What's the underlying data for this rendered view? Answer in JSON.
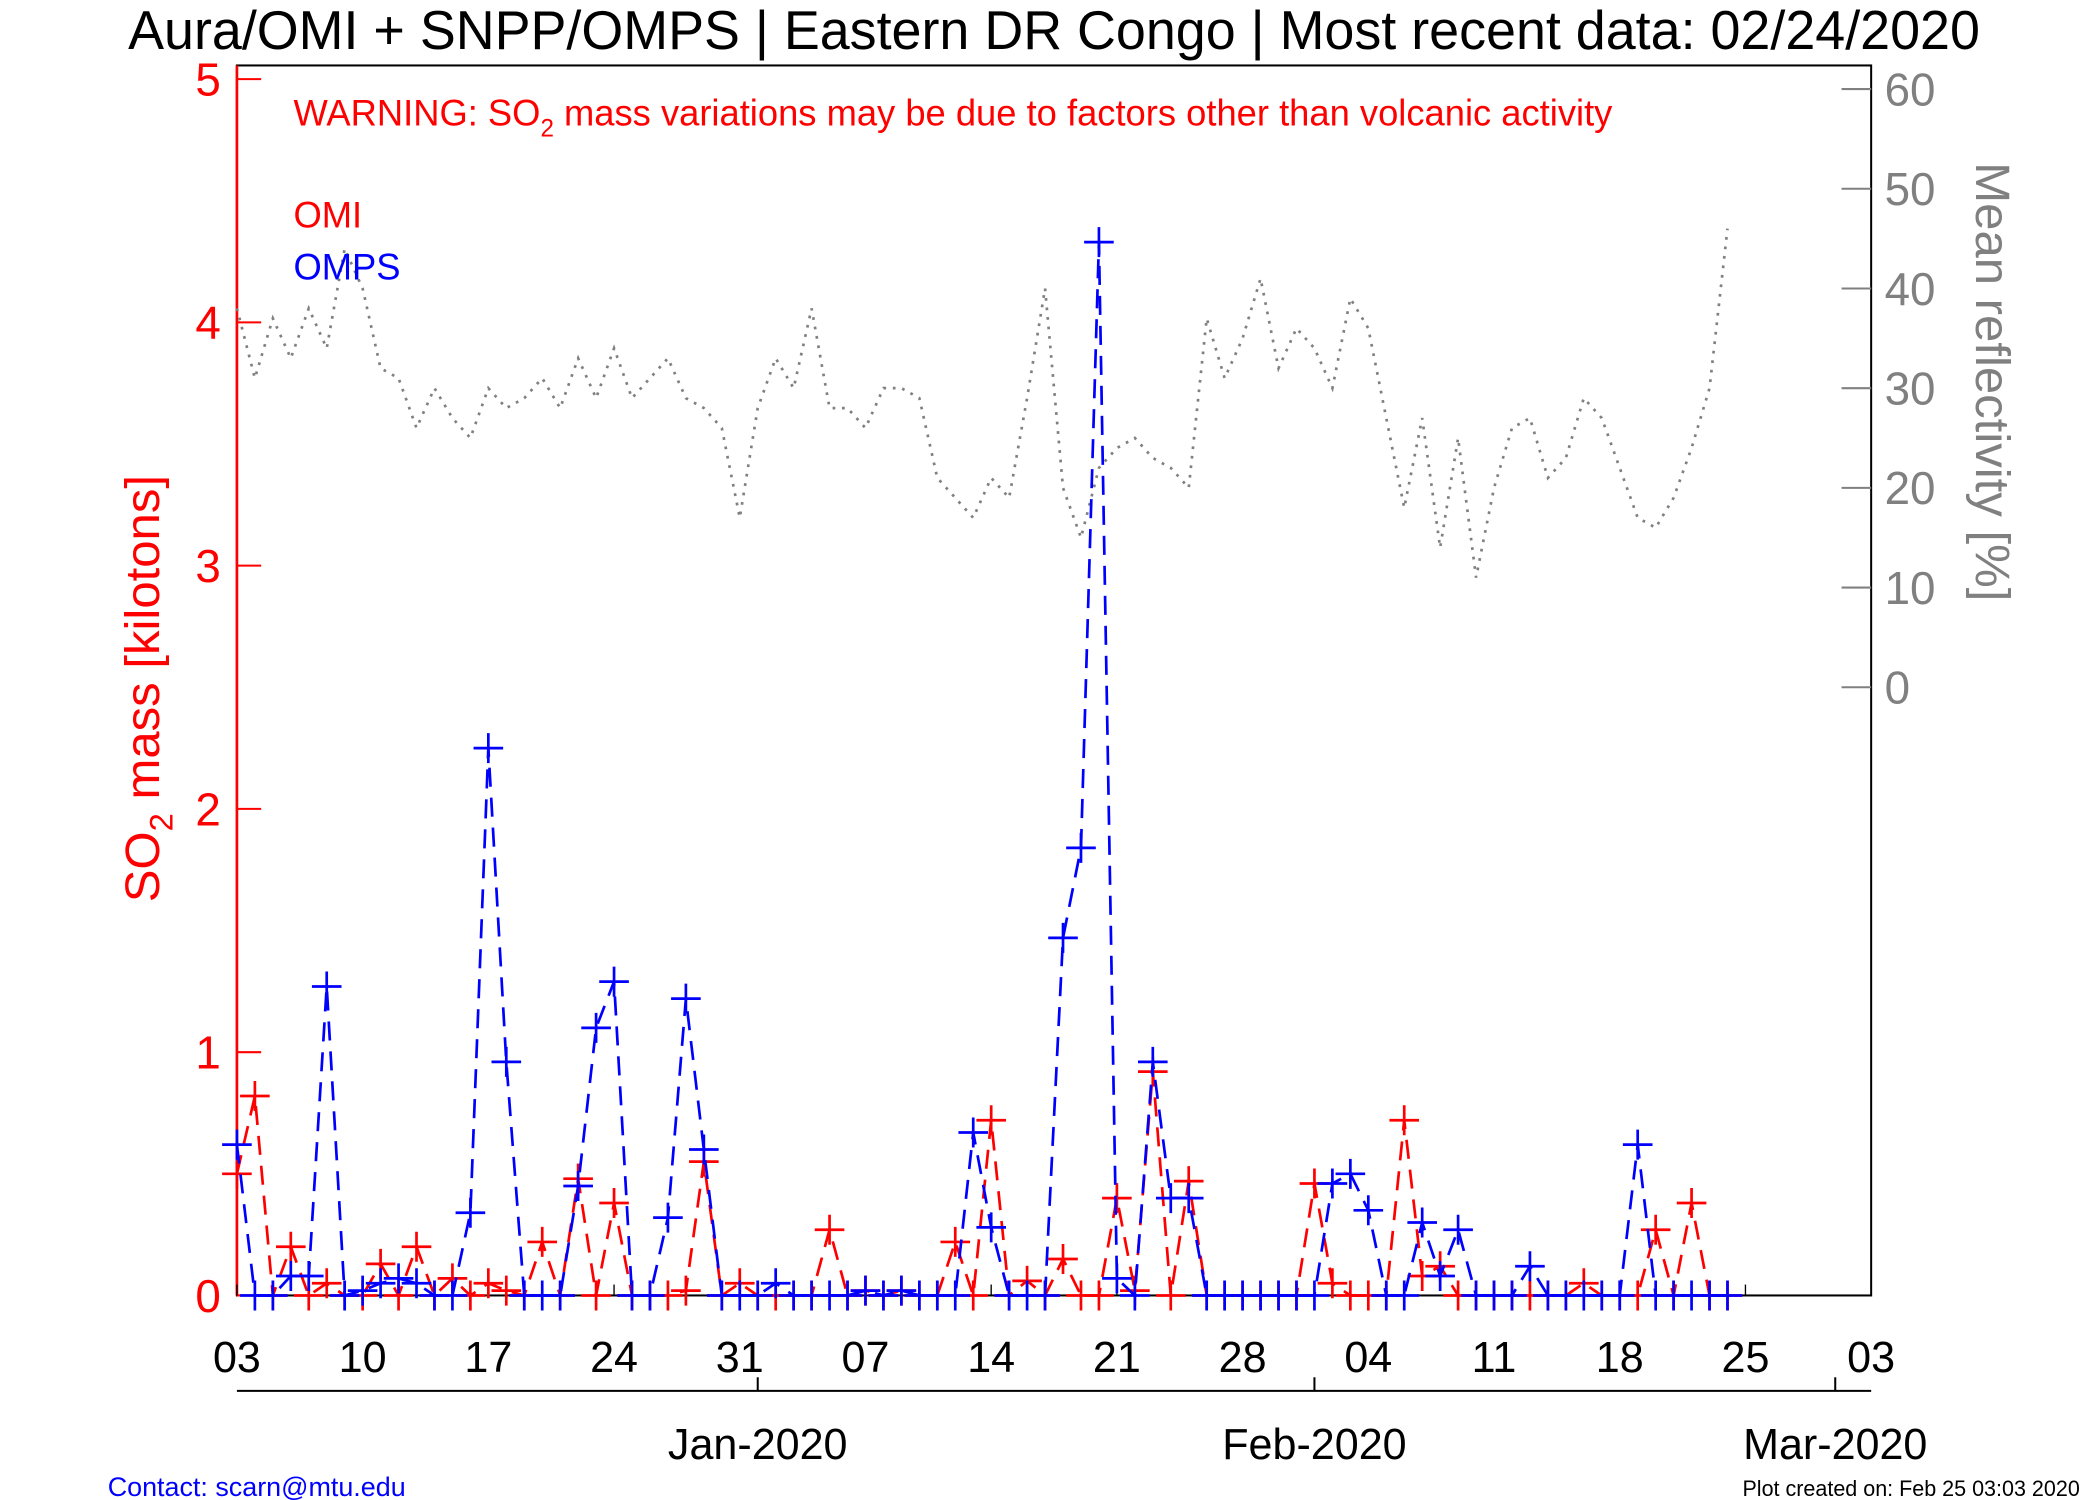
{
  "chart_data": {
    "type": "line",
    "title": "Aura/OMI + SNPP/OMPS | Eastern DR Congo | Most recent data: 02/24/2020",
    "warning": [
      "WARNING: SO",
      "2",
      " mass variations may be due to factors other than volcanic activity"
    ],
    "ylabel": [
      "SO",
      "2",
      " mass [kilotons]"
    ],
    "y2label": "Mean reflectivity [%]",
    "contact": "Contact: scarn@mtu.edu",
    "created": "Plot created on: Feb 25 03:03 2020",
    "x": [
      0,
      1,
      2,
      3,
      4,
      5,
      6,
      7,
      8,
      9,
      10,
      11,
      12,
      13,
      14,
      15,
      16,
      17,
      18,
      19,
      20,
      21,
      22,
      23,
      24,
      25,
      26,
      27,
      28,
      29,
      30,
      31,
      32,
      33,
      34,
      35,
      36,
      37,
      38,
      39,
      40,
      41,
      42,
      43,
      44,
      45,
      46,
      47,
      48,
      49,
      50,
      51,
      52,
      53,
      54,
      55,
      56,
      57,
      58,
      59,
      60,
      61,
      62,
      63,
      64,
      65,
      66,
      67,
      68,
      69,
      70,
      71,
      72,
      73,
      74,
      75,
      76,
      77,
      78,
      79,
      80,
      81,
      82,
      83
    ],
    "series": [
      {
        "name": "OMI",
        "color": "#ff0000",
        "values": [
          0.5,
          0.82,
          0,
          0.2,
          0,
          0.05,
          0,
          0,
          0.13,
          0,
          0.2,
          0,
          0.07,
          0,
          0.05,
          0.02,
          0,
          0.22,
          0,
          0.48,
          0,
          0.38,
          0,
          0,
          0,
          0.02,
          0.55,
          0,
          0.05,
          0,
          0,
          0,
          0,
          0.27,
          0,
          0.02,
          0,
          0.02,
          0,
          0,
          0.22,
          0,
          0.72,
          0,
          0.06,
          0,
          0.15,
          0,
          0,
          0.4,
          0.02,
          0.92,
          0,
          0.47,
          0,
          0,
          0,
          0,
          0,
          0,
          0.46,
          0.05,
          0,
          0,
          0,
          0.72,
          0.08,
          0.12,
          0,
          0,
          0,
          0,
          0,
          0,
          0,
          0.05,
          0,
          0,
          0,
          0.27,
          0,
          0.38,
          0,
          0
        ]
      },
      {
        "name": "OMPS",
        "color": "#0000ff",
        "values": [
          0.62,
          0,
          0,
          0.08,
          0.08,
          1.27,
          0,
          0.02,
          0.05,
          0.07,
          0.05,
          0,
          0,
          0.34,
          2.25,
          0.96,
          0,
          0,
          0,
          0.45,
          1.1,
          1.29,
          0,
          0,
          0.32,
          1.22,
          0.6,
          0,
          0,
          0,
          0.05,
          0,
          0,
          0,
          0,
          0.02,
          0,
          0.02,
          0,
          0,
          0,
          0.67,
          0.28,
          0,
          0,
          0,
          1.47,
          1.84,
          4.33,
          0.07,
          0,
          0.96,
          0.4,
          0.4,
          0,
          0,
          0,
          0,
          0,
          0,
          0,
          0.46,
          0.5,
          0.35,
          0,
          0,
          0.3,
          0.08,
          0.27,
          0,
          0,
          0,
          0.12,
          0,
          0,
          0,
          0,
          0,
          0.62,
          0,
          0,
          0,
          0,
          0
        ]
      }
    ],
    "reflectivity": {
      "axis": "y2",
      "color": "#808080",
      "values": [
        38,
        31,
        37,
        33,
        38,
        34,
        44,
        40,
        32,
        31,
        26,
        30,
        27,
        25,
        30,
        28,
        29,
        31,
        28,
        33,
        29,
        34,
        29,
        31,
        33,
        29,
        28,
        26,
        17,
        28,
        33,
        30,
        38,
        28,
        28,
        26,
        30,
        30,
        29,
        21,
        19,
        17,
        21,
        19,
        29,
        40,
        20,
        15,
        22,
        24,
        25,
        23,
        22,
        20,
        37,
        31,
        35,
        41,
        32,
        36,
        34,
        30,
        39,
        36,
        27,
        18,
        27,
        14,
        25,
        11,
        20,
        26,
        27,
        21,
        23,
        29,
        27,
        22,
        17,
        16,
        19,
        24,
        30,
        46
      ]
    },
    "xlim": [
      0,
      91
    ],
    "xticks": [
      {
        "value": 0,
        "label": "03"
      },
      {
        "value": 7,
        "label": "10"
      },
      {
        "value": 14,
        "label": "17"
      },
      {
        "value": 21,
        "label": "24"
      },
      {
        "value": 28,
        "label": "31"
      },
      {
        "value": 35,
        "label": "07"
      },
      {
        "value": 42,
        "label": "14"
      },
      {
        "value": 49,
        "label": "21"
      },
      {
        "value": 56,
        "label": "28"
      },
      {
        "value": 63,
        "label": "04"
      },
      {
        "value": 70,
        "label": "11"
      },
      {
        "value": 77,
        "label": "18"
      },
      {
        "value": 84,
        "label": "25"
      },
      {
        "value": 91,
        "label": "03"
      }
    ],
    "month_ticks": [
      {
        "value": 29,
        "label": "Jan-2020"
      },
      {
        "value": 60,
        "label": "Feb-2020"
      },
      {
        "value": 89,
        "label": "Mar-2020"
      }
    ],
    "ylim": [
      0,
      5
    ],
    "yticks": [
      0,
      1,
      2,
      3,
      4,
      5
    ],
    "y2lim": [
      -61,
      61
    ],
    "y2ticks": [
      0,
      10,
      20,
      30,
      40,
      50,
      60
    ],
    "ycolor": "#ff0000",
    "y2color": "#808080"
  }
}
